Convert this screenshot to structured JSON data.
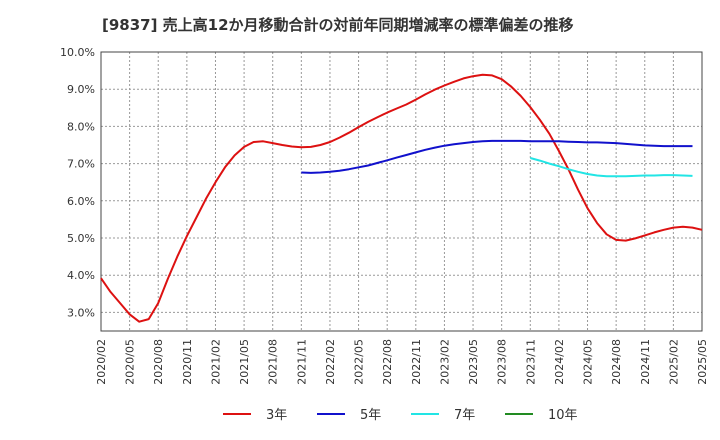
{
  "chart_data": {
    "type": "line",
    "title": "[9837]  売上高12か月移動合計の対前年同期増減率の標準偏差の推移",
    "xlabel": "",
    "ylabel": "",
    "ylim": [
      2.5,
      10.0
    ],
    "y_ticks": [
      3.0,
      4.0,
      5.0,
      6.0,
      7.0,
      8.0,
      9.0,
      10.0
    ],
    "y_tick_labels": [
      "3.0%",
      "4.0%",
      "5.0%",
      "6.0%",
      "7.0%",
      "8.0%",
      "9.0%",
      "10.0%"
    ],
    "x_tick_labels": [
      "2020/02",
      "2020/05",
      "2020/08",
      "2020/11",
      "2021/02",
      "2021/05",
      "2021/08",
      "2021/11",
      "2022/02",
      "2022/05",
      "2022/08",
      "2022/11",
      "2023/02",
      "2023/05",
      "2023/08",
      "2023/11",
      "2024/02",
      "2024/05",
      "2024/08",
      "2024/11",
      "2025/02",
      "2025/05"
    ],
    "grid": true,
    "legend_position": "bottom",
    "series": [
      {
        "name": "3年",
        "color": "#dd1111",
        "start_index": 0,
        "values": [
          3.92,
          3.55,
          3.25,
          2.95,
          2.75,
          2.82,
          3.25,
          3.9,
          4.5,
          5.05,
          5.55,
          6.05,
          6.5,
          6.9,
          7.22,
          7.45,
          7.58,
          7.6,
          7.55,
          7.5,
          7.46,
          7.44,
          7.45,
          7.5,
          7.58,
          7.7,
          7.83,
          7.98,
          8.12,
          8.25,
          8.37,
          8.48,
          8.59,
          8.72,
          8.86,
          8.99,
          9.1,
          9.2,
          9.29,
          9.35,
          9.39,
          9.37,
          9.27,
          9.07,
          8.82,
          8.52,
          8.18,
          7.8,
          7.34,
          6.85,
          6.3,
          5.8,
          5.4,
          5.1,
          4.95,
          4.93,
          4.99,
          5.07,
          5.15,
          5.22,
          5.28,
          5.3,
          5.28,
          5.22
        ]
      },
      {
        "name": "5年",
        "color": "#1111cc",
        "start_index": 21,
        "values": [
          6.76,
          6.75,
          6.76,
          6.78,
          6.81,
          6.85,
          6.9,
          6.95,
          7.02,
          7.09,
          7.16,
          7.23,
          7.3,
          7.37,
          7.43,
          7.48,
          7.52,
          7.55,
          7.58,
          7.6,
          7.61,
          7.61,
          7.61,
          7.61,
          7.6,
          7.6,
          7.6,
          7.6,
          7.59,
          7.58,
          7.57,
          7.57,
          7.56,
          7.55,
          7.53,
          7.51,
          7.49,
          7.48,
          7.47,
          7.47,
          7.47,
          7.47
        ]
      },
      {
        "name": "7年",
        "color": "#22e5e5",
        "start_index": 45,
        "values": [
          7.15,
          7.08,
          7.0,
          6.93,
          6.85,
          6.78,
          6.72,
          6.68,
          6.66,
          6.66,
          6.66,
          6.67,
          6.68,
          6.68,
          6.69,
          6.69,
          6.68,
          6.67
        ]
      },
      {
        "name": "10年",
        "color": "#228b22",
        "start_index": 0,
        "values": []
      }
    ]
  }
}
